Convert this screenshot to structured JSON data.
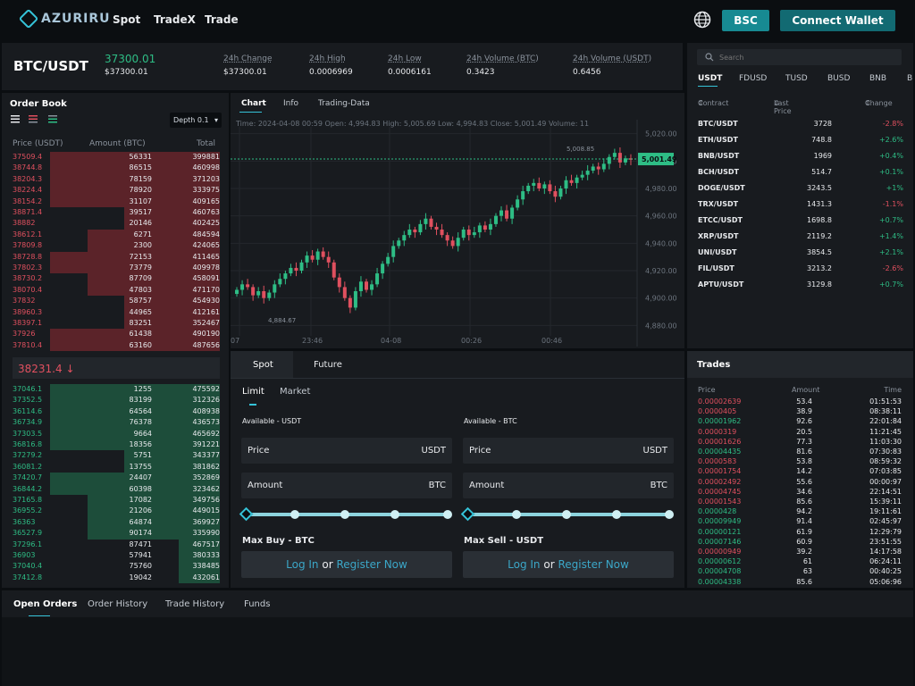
{
  "header": {
    "logo_text": "AZURIRU",
    "nav": [
      "Spot",
      "TradeX",
      "Trade"
    ],
    "network_button": "BSC",
    "connect_button": "Connect Wallet"
  },
  "ticker": {
    "pair": "BTC/USDT",
    "last_price": "37300.01",
    "last_price_usd": "$37300.01",
    "stats": [
      {
        "label": "24h Change",
        "value": "$37300.01"
      },
      {
        "label": "24h High",
        "value": "0.0006969"
      },
      {
        "label": "24h Low",
        "value": "0.0006161"
      },
      {
        "label": "24h Volume (BTC)",
        "value": "0.3423"
      },
      {
        "label": "24h Volume (USDT)",
        "value": "0.6456"
      }
    ]
  },
  "orderbook": {
    "title": "Order Book",
    "depth": "Depth 0.1",
    "headers": {
      "price": "Price (USDT)",
      "amount": "Amount (BTC)",
      "total": "Total"
    },
    "asks": [
      {
        "price": "37509.4",
        "amount": "56331",
        "total": "399881",
        "depth": 0.82
      },
      {
        "price": "38744.8",
        "amount": "86515",
        "total": "460998",
        "depth": 0.82
      },
      {
        "price": "38204.3",
        "amount": "78159",
        "total": "371203",
        "depth": 0.82
      },
      {
        "price": "38224.4",
        "amount": "78920",
        "total": "333975",
        "depth": 0.82
      },
      {
        "price": "38154.2",
        "amount": "31107",
        "total": "409165",
        "depth": 0.82
      },
      {
        "price": "38871.4",
        "amount": "39517",
        "total": "460763",
        "depth": 0.46
      },
      {
        "price": "38882",
        "amount": "20146",
        "total": "402425",
        "depth": 0.46
      },
      {
        "price": "38612.1",
        "amount": "6271",
        "total": "484594",
        "depth": 0.64
      },
      {
        "price": "37809.8",
        "amount": "2300",
        "total": "424065",
        "depth": 0.64
      },
      {
        "price": "38728.8",
        "amount": "72153",
        "total": "411465",
        "depth": 0.82
      },
      {
        "price": "37802.3",
        "amount": "73779",
        "total": "409978",
        "depth": 0.82
      },
      {
        "price": "38730.2",
        "amount": "87709",
        "total": "458091",
        "depth": 0.64
      },
      {
        "price": "38070.4",
        "amount": "47803",
        "total": "471170",
        "depth": 0.64
      },
      {
        "price": "37832",
        "amount": "58757",
        "total": "454930",
        "depth": 0.46
      },
      {
        "price": "38960.3",
        "amount": "44965",
        "total": "412161",
        "depth": 0.46
      },
      {
        "price": "38397.1",
        "amount": "83251",
        "total": "352467",
        "depth": 0.46
      },
      {
        "price": "37926",
        "amount": "61438",
        "total": "490190",
        "depth": 0.82
      },
      {
        "price": "37810.4",
        "amount": "63160",
        "total": "487656",
        "depth": 0.82
      }
    ],
    "mid_price": "38231.4",
    "bids": [
      {
        "price": "37046.1",
        "amount": "1255",
        "total": "475592",
        "depth": 0.82
      },
      {
        "price": "37352.5",
        "amount": "83199",
        "total": "312326",
        "depth": 0.82
      },
      {
        "price": "36114.6",
        "amount": "64564",
        "total": "408938",
        "depth": 0.82
      },
      {
        "price": "36734.9",
        "amount": "76378",
        "total": "436573",
        "depth": 0.82
      },
      {
        "price": "37303.5",
        "amount": "9664",
        "total": "465692",
        "depth": 0.82
      },
      {
        "price": "36816.8",
        "amount": "18356",
        "total": "391221",
        "depth": 0.82
      },
      {
        "price": "37279.2",
        "amount": "5751",
        "total": "343377",
        "depth": 0.46
      },
      {
        "price": "36081.2",
        "amount": "13755",
        "total": "381862",
        "depth": 0.46
      },
      {
        "price": "37420.7",
        "amount": "24407",
        "total": "352869",
        "depth": 0.82
      },
      {
        "price": "36844.2",
        "amount": "60398",
        "total": "323462",
        "depth": 0.82
      },
      {
        "price": "37165.8",
        "amount": "17082",
        "total": "349756",
        "depth": 0.64
      },
      {
        "price": "36955.2",
        "amount": "21206",
        "total": "449015",
        "depth": 0.64
      },
      {
        "price": "36363",
        "amount": "64874",
        "total": "369927",
        "depth": 0.64
      },
      {
        "price": "36527.9",
        "amount": "90174",
        "total": "335990",
        "depth": 0.64
      },
      {
        "price": "37296.1",
        "amount": "87471",
        "total": "467517",
        "depth": 0.2
      },
      {
        "price": "36903",
        "amount": "57941",
        "total": "380333",
        "depth": 0.2
      },
      {
        "price": "37040.4",
        "amount": "75760",
        "total": "338485",
        "depth": 0.2
      },
      {
        "price": "37412.8",
        "amount": "19042",
        "total": "432061",
        "depth": 0.2
      }
    ]
  },
  "chart": {
    "tabs": [
      "Chart",
      "Info",
      "Trading-Data"
    ],
    "info_line": "Time: 2024-04-08 00:59   Open: 4,994.83   High: 5,005.69   Low: 4,994.83   Close: 5,001.49   Volume: 11"
  },
  "chart_data": {
    "type": "candlestick",
    "y_ticks": [
      "5,020.00",
      "5,000.00",
      "4,980.00",
      "4,960.00",
      "4,940.00",
      "4,920.00",
      "4,900.00",
      "4,880.00"
    ],
    "ylim": [
      4875,
      5025
    ],
    "x_ticks": [
      "07",
      "23:46",
      "04-08",
      "00:26",
      "00:46"
    ],
    "last_price_label": "5,001.49",
    "high_marker": "5,008.85",
    "low_marker": "4,884.67",
    "closes": [
      4906,
      4910,
      4908,
      4902,
      4905,
      4900,
      4904,
      4910,
      4914,
      4918,
      4922,
      4920,
      4926,
      4931,
      4928,
      4934,
      4930,
      4926,
      4915,
      4908,
      4900,
      4893,
      4905,
      4912,
      4906,
      4910,
      4918,
      4925,
      4930,
      4938,
      4942,
      4946,
      4950,
      4948,
      4954,
      4958,
      4952,
      4950,
      4946,
      4942,
      4938,
      4944,
      4950,
      4946,
      4948,
      4953,
      4950,
      4954,
      4960,
      4964,
      4958,
      4966,
      4972,
      4978,
      4982,
      4984,
      4980,
      4983,
      4978,
      4974,
      4980,
      4986,
      4984,
      4988,
      4990,
      4993,
      4996,
      4994,
      4998,
      5003,
      5006,
      4999,
      5002,
      5001
    ]
  },
  "trade_form": {
    "tabs": [
      "Spot",
      "Future"
    ],
    "order_types": [
      "Limit",
      "Market"
    ],
    "buy": {
      "available": "Available - USDT",
      "price_label": "Price",
      "price_unit": "USDT",
      "amount_label": "Amount",
      "amount_unit": "BTC",
      "max": "Max Buy - BTC",
      "login": "Log In",
      "or": "or",
      "register": "Register Now"
    },
    "sell": {
      "available": "Available - BTC",
      "price_label": "Price",
      "price_unit": "USDT",
      "amount_label": "Amount",
      "amount_unit": "BTC",
      "max": "Max Sell - USDT",
      "login": "Log In",
      "or": "or",
      "register": "Register Now"
    }
  },
  "markets": {
    "search_placeholder": "Search",
    "quote_tabs": [
      "USDT",
      "FDUSD",
      "TUSD",
      "BUSD",
      "BNB",
      "B"
    ],
    "headers": {
      "contract": "Contract",
      "last": "Last Price",
      "change": "Change"
    },
    "rows": [
      {
        "pair": "BTC/USDT",
        "price": "3728",
        "change": "-2.8%",
        "dir": "down"
      },
      {
        "pair": "ETH/USDT",
        "price": "748.8",
        "change": "+2.6%",
        "dir": "up"
      },
      {
        "pair": "BNB/USDT",
        "price": "1969",
        "change": "+0.4%",
        "dir": "up"
      },
      {
        "pair": "BCH/USDT",
        "price": "514.7",
        "change": "+0.1%",
        "dir": "up"
      },
      {
        "pair": "DOGE/USDT",
        "price": "3243.5",
        "change": "+1%",
        "dir": "up"
      },
      {
        "pair": "TRX/USDT",
        "price": "1431.3",
        "change": "-1.1%",
        "dir": "down"
      },
      {
        "pair": "ETCC/USDT",
        "price": "1698.8",
        "change": "+0.7%",
        "dir": "up"
      },
      {
        "pair": "XRP/USDT",
        "price": "2119.2",
        "change": "+1.4%",
        "dir": "up"
      },
      {
        "pair": "UNI/USDT",
        "price": "3854.5",
        "change": "+2.1%",
        "dir": "up"
      },
      {
        "pair": "FIL/USDT",
        "price": "3213.2",
        "change": "-2.6%",
        "dir": "down"
      },
      {
        "pair": "APTU/USDT",
        "price": "3129.8",
        "change": "+0.7%",
        "dir": "up"
      }
    ]
  },
  "trades": {
    "title": "Trades",
    "headers": {
      "price": "Price",
      "amount": "Amount",
      "time": "Time"
    },
    "rows": [
      {
        "price": "0.00002639",
        "amount": "53.4",
        "time": "01:51:53",
        "dir": "down"
      },
      {
        "price": "0.0000405",
        "amount": "38.9",
        "time": "08:38:11",
        "dir": "down"
      },
      {
        "price": "0.00001962",
        "amount": "92.6",
        "time": "22:01:84",
        "dir": "up"
      },
      {
        "price": "0.0000319",
        "amount": "20.5",
        "time": "11:21:45",
        "dir": "down"
      },
      {
        "price": "0.00001626",
        "amount": "77.3",
        "time": "11:03:30",
        "dir": "down"
      },
      {
        "price": "0.00004435",
        "amount": "81.6",
        "time": "07:30:83",
        "dir": "up"
      },
      {
        "price": "0.0000583",
        "amount": "53.8",
        "time": "08:59:32",
        "dir": "down"
      },
      {
        "price": "0.00001754",
        "amount": "14.2",
        "time": "07:03:85",
        "dir": "down"
      },
      {
        "price": "0.00002492",
        "amount": "55.6",
        "time": "00:00:97",
        "dir": "down"
      },
      {
        "price": "0.00004745",
        "amount": "34.6",
        "time": "22:14:51",
        "dir": "down"
      },
      {
        "price": "0.00001543",
        "amount": "85.6",
        "time": "15:39:11",
        "dir": "down"
      },
      {
        "price": "0.0000428",
        "amount": "94.2",
        "time": "19:11:61",
        "dir": "up"
      },
      {
        "price": "0.00009949",
        "amount": "91.4",
        "time": "02:45:97",
        "dir": "up"
      },
      {
        "price": "0.00000121",
        "amount": "61.9",
        "time": "12:29:79",
        "dir": "up"
      },
      {
        "price": "0.00007146",
        "amount": "60.9",
        "time": "23:51:55",
        "dir": "up"
      },
      {
        "price": "0.00000949",
        "amount": "39.2",
        "time": "14:17:58",
        "dir": "down"
      },
      {
        "price": "0.00000612",
        "amount": "61",
        "time": "06:24:11",
        "dir": "up"
      },
      {
        "price": "0.00004708",
        "amount": "63",
        "time": "00:40:25",
        "dir": "up"
      },
      {
        "price": "0.00004338",
        "amount": "85.6",
        "time": "05:06:96",
        "dir": "up"
      }
    ]
  },
  "bottom_tabs": [
    "Open Orders",
    "Order History",
    "Trade History",
    "Funds"
  ],
  "colors": {
    "up": "#2ebd85",
    "down": "#e0505f",
    "accent": "#35c3d8",
    "button": "#178a92"
  }
}
